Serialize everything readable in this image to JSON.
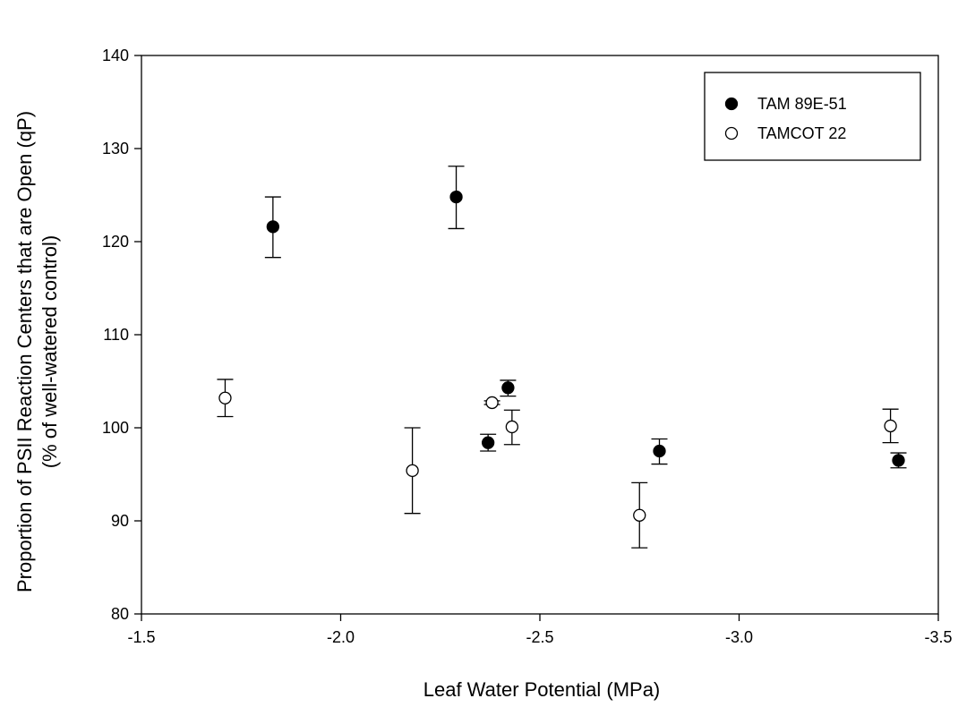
{
  "chart_data": {
    "type": "scatter",
    "title": "",
    "xlabel": "Leaf Water Potential (MPa)",
    "ylabel_line1": "Proportion of PSII Reaction Centers that are Open (qP)",
    "ylabel_line2": "(% of well-watered control)",
    "xlim": [
      -1.5,
      -3.5
    ],
    "ylim": [
      80,
      140
    ],
    "x_ticks": [
      -1.5,
      -2.0,
      -2.5,
      -3.0,
      -3.5
    ],
    "x_tick_labels": [
      "-1.5",
      "-2.0",
      "-2.5",
      "-3.0",
      "-3.5"
    ],
    "y_ticks": [
      80,
      90,
      100,
      110,
      120,
      130,
      140
    ],
    "y_tick_labels": [
      "80",
      "90",
      "100",
      "110",
      "120",
      "130",
      "140"
    ],
    "grid": false,
    "legend_position": "top-right",
    "series": [
      {
        "name": "TAM 89E-51",
        "marker": "filled-circle",
        "color": "#000000",
        "points": [
          {
            "x": -1.83,
            "y": 121.6,
            "err_low": 118.3,
            "err_high": 124.8
          },
          {
            "x": -2.29,
            "y": 124.8,
            "err_low": 121.4,
            "err_high": 128.1
          },
          {
            "x": -2.37,
            "y": 98.4,
            "err_low": 97.5,
            "err_high": 99.3
          },
          {
            "x": -2.42,
            "y": 104.3,
            "err_low": 103.4,
            "err_high": 105.1
          },
          {
            "x": -2.8,
            "y": 97.5,
            "err_low": 96.1,
            "err_high": 98.8
          },
          {
            "x": -3.4,
            "y": 96.5,
            "err_low": 95.7,
            "err_high": 97.3
          }
        ]
      },
      {
        "name": "TAMCOT 22",
        "marker": "open-circle",
        "color": "#000000",
        "points": [
          {
            "x": -1.71,
            "y": 103.2,
            "err_low": 101.2,
            "err_high": 105.2
          },
          {
            "x": -2.18,
            "y": 95.4,
            "err_low": 90.8,
            "err_high": 100.0
          },
          {
            "x": -2.38,
            "y": 102.7,
            "err_low": 102.5,
            "err_high": 102.9
          },
          {
            "x": -2.43,
            "y": 100.1,
            "err_low": 98.2,
            "err_high": 101.9
          },
          {
            "x": -2.75,
            "y": 90.6,
            "err_low": 87.1,
            "err_high": 94.1
          },
          {
            "x": -3.38,
            "y": 100.2,
            "err_low": 98.4,
            "err_high": 102.0
          }
        ]
      }
    ]
  }
}
